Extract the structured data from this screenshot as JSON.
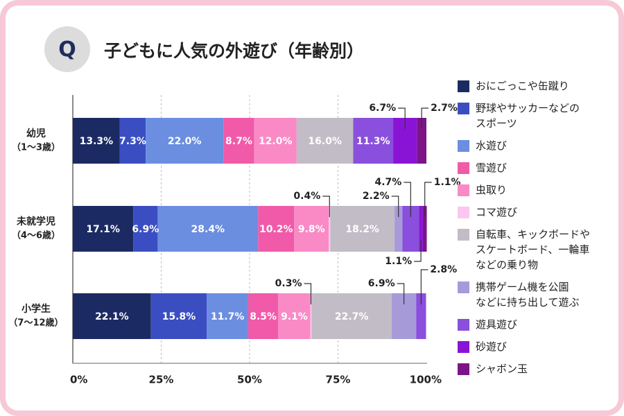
{
  "header": {
    "q_mark": "Q",
    "title": "子どもに人気の外遊び（年齢別）"
  },
  "chart_data": {
    "type": "bar",
    "orientation": "horizontal",
    "stacked": true,
    "title": "子どもに人気の外遊び（年齢別）",
    "xlim": [
      0,
      100
    ],
    "x_ticks": [
      "0%",
      "25%",
      "50%",
      "75%",
      "100%"
    ],
    "categories": [
      {
        "line1": "幼児",
        "line2": "（1〜3歳）"
      },
      {
        "line1": "未就学児",
        "line2": "（4〜6歳）"
      },
      {
        "line1": "小学生",
        "line2": "（7〜12歳）"
      }
    ],
    "series": [
      {
        "name": "おにごっこや缶蹴り",
        "color": "#1c2a63",
        "values": [
          13.3,
          17.1,
          22.1
        ]
      },
      {
        "name": "野球やサッカーなどのスポーツ",
        "legend_lines": [
          "野球やサッカーなどの",
          "スポーツ"
        ],
        "color": "#3a4ec2",
        "values": [
          7.3,
          6.9,
          15.8
        ]
      },
      {
        "name": "水遊び",
        "color": "#6b8ee0",
        "values": [
          22.0,
          28.4,
          11.7
        ]
      },
      {
        "name": "雪遊び",
        "color": "#f05aa8",
        "values": [
          8.7,
          10.2,
          8.5
        ]
      },
      {
        "name": "虫取り",
        "color": "#f98ac6",
        "values": [
          12.0,
          9.8,
          9.1
        ]
      },
      {
        "name": "コマ遊び",
        "color": "#fcc7ee",
        "values": [
          0.0,
          0.4,
          0.3
        ]
      },
      {
        "name": "自転車、キックボードやスケートボード、一輪車などの乗り物",
        "legend_lines": [
          "自転車、キックボードや",
          "スケートボード、一輪車",
          "などの乗り物"
        ],
        "color": "#c2bcc6",
        "values": [
          16.0,
          18.2,
          22.7
        ]
      },
      {
        "name": "携帯ゲーム機を公園などに持ち出して遊ぶ",
        "legend_lines": [
          "携帯ゲーム機を公園",
          "などに持ち出して遊ぶ"
        ],
        "color": "#a79ad9",
        "values": [
          0.0,
          2.2,
          6.9
        ]
      },
      {
        "name": "遊具遊び",
        "color": "#8a4fdc",
        "values": [
          11.3,
          4.7,
          2.8
        ]
      },
      {
        "name": "砂遊び",
        "color": "#8a14d6",
        "values": [
          6.7,
          1.1,
          0.0
        ]
      },
      {
        "name": "シャボン玉",
        "color": "#7c1488",
        "values": [
          2.7,
          1.1,
          0.0
        ]
      }
    ],
    "inside_labels": [
      [
        {
          "series": 0,
          "text": "13.3%"
        },
        {
          "series": 1,
          "text": "7.3%"
        },
        {
          "series": 2,
          "text": "22.0%"
        },
        {
          "series": 3,
          "text": "8.7%"
        },
        {
          "series": 4,
          "text": "12.0%"
        },
        {
          "series": 6,
          "text": "16.0%"
        },
        {
          "series": 8,
          "text": "11.3%"
        }
      ],
      [
        {
          "series": 0,
          "text": "17.1%"
        },
        {
          "series": 1,
          "text": "6.9%"
        },
        {
          "series": 2,
          "text": "28.4%"
        },
        {
          "series": 3,
          "text": "10.2%"
        },
        {
          "series": 4,
          "text": "9.8%"
        },
        {
          "series": 6,
          "text": "18.2%"
        }
      ],
      [
        {
          "series": 0,
          "text": "22.1%"
        },
        {
          "series": 1,
          "text": "15.8%"
        },
        {
          "series": 2,
          "text": "11.7%"
        },
        {
          "series": 3,
          "text": "8.5%"
        },
        {
          "series": 4,
          "text": "9.1%"
        },
        {
          "series": 6,
          "text": "22.7%"
        }
      ]
    ],
    "callouts": [
      [
        {
          "series": 9,
          "text": "6.7%",
          "side": "above",
          "dir": "left"
        },
        {
          "series": 10,
          "text": "2.7%",
          "side": "above",
          "dir": "right"
        }
      ],
      [
        {
          "series": 5,
          "text": "0.4%",
          "side": "above",
          "dir": "left"
        },
        {
          "series": 7,
          "text": "2.2%",
          "side": "above",
          "dir": "left"
        },
        {
          "series": 8,
          "text": "4.7%",
          "side": "above",
          "dir": "left",
          "tier": 2
        },
        {
          "series": 10,
          "text": "1.1%",
          "side": "above",
          "dir": "right",
          "tier": 2
        },
        {
          "series": 9,
          "text": "1.1%",
          "side": "below",
          "dir": "left"
        }
      ],
      [
        {
          "series": 5,
          "text": "0.3%",
          "side": "above",
          "dir": "left"
        },
        {
          "series": 7,
          "text": "6.9%",
          "side": "above",
          "dir": "left"
        },
        {
          "series": 8,
          "text": "2.8%",
          "side": "above",
          "dir": "right",
          "tier": 2
        }
      ]
    ]
  }
}
